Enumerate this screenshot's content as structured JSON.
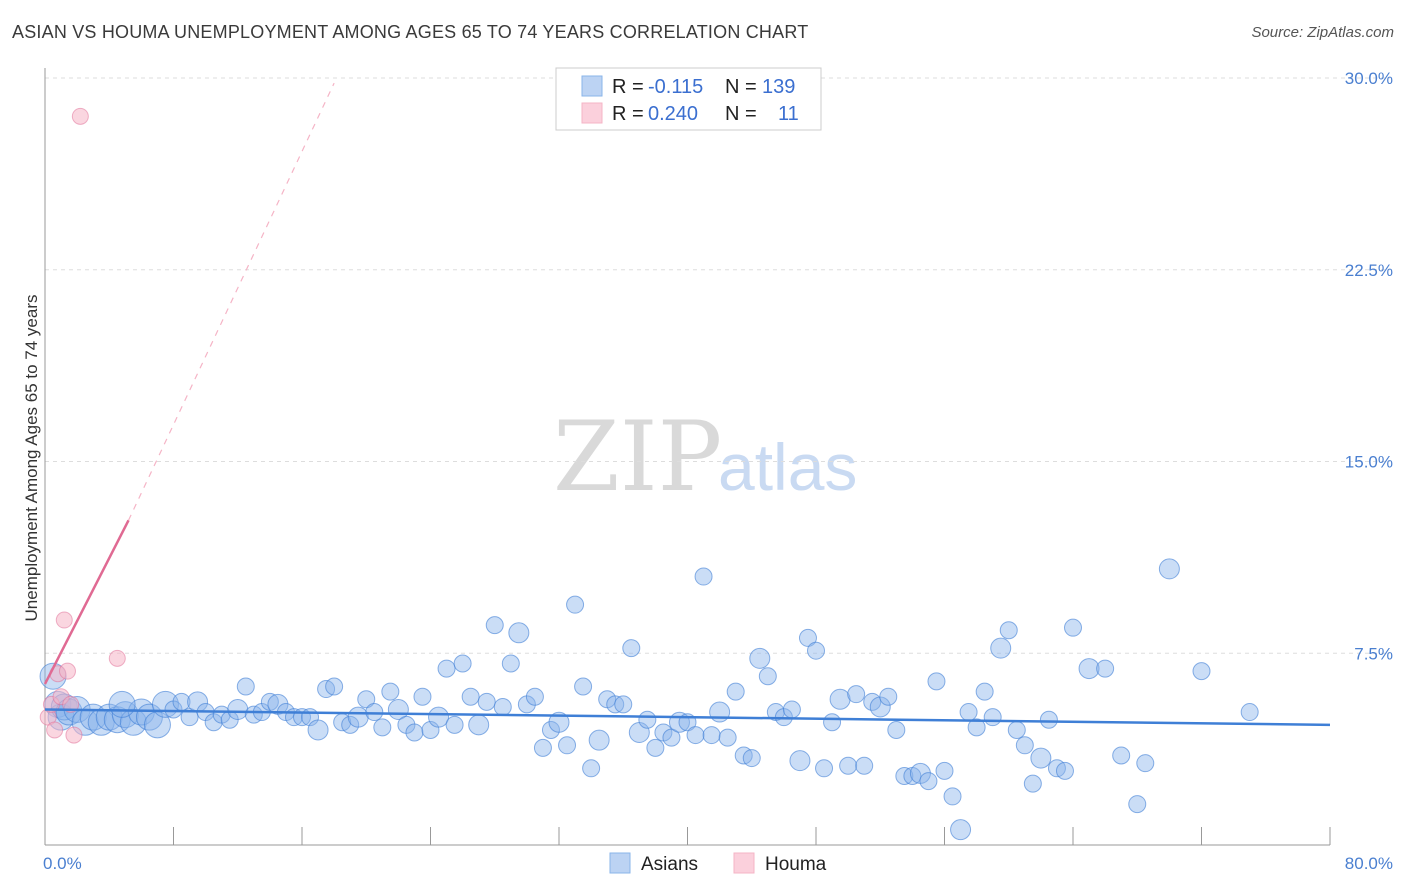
{
  "title": "ASIAN VS HOUMA UNEMPLOYMENT AMONG AGES 65 TO 74 YEARS CORRELATION CHART",
  "source": "Source: ZipAtlas.com",
  "watermark": {
    "zip": "ZIP",
    "atlas": "atlas"
  },
  "chart_data": {
    "type": "scatter",
    "ylabel": "Unemployment Among Ages 65 to 74 years",
    "xlim": [
      0,
      80
    ],
    "ylim": [
      0,
      30
    ],
    "x_tick_labels": [
      "0.0%",
      "80.0%"
    ],
    "y_ticks": [
      7.5,
      15.0,
      22.5,
      30.0
    ],
    "y_tick_labels": [
      "7.5%",
      "15.0%",
      "22.5%",
      "30.0%"
    ],
    "colors": {
      "asians": "#8ab4ea",
      "asians_line": "#3f7fd6",
      "houma": "#f5b4c6",
      "houma_line": "#e06a93"
    },
    "legend": {
      "rows": [
        {
          "r_label": "R =",
          "r_value": "-0.115",
          "n_label": "N =",
          "n_value": "139"
        },
        {
          "r_label": "R =",
          "r_value": "0.240",
          "n_label": "N =",
          "n_value": "11"
        }
      ]
    },
    "bottom_legend": [
      "Asians",
      "Houma"
    ],
    "series": [
      {
        "name": "Asians",
        "trend": {
          "x0": 0,
          "y0": 5.3,
          "x1": 80,
          "y1": 4.7
        },
        "points": [
          [
            0.5,
            6.6
          ],
          [
            0.8,
            5.5
          ],
          [
            1.0,
            5.0
          ],
          [
            1.2,
            5.4
          ],
          [
            1.5,
            5.2
          ],
          [
            2.0,
            5.3
          ],
          [
            2.5,
            4.8
          ],
          [
            3.0,
            5.0
          ],
          [
            3.5,
            4.8
          ],
          [
            4.0,
            5.0
          ],
          [
            4.5,
            4.9
          ],
          [
            5.0,
            5.1
          ],
          [
            5.5,
            4.8
          ],
          [
            6.0,
            5.2
          ],
          [
            6.5,
            5.0
          ],
          [
            7.0,
            4.7
          ],
          [
            7.5,
            5.5
          ],
          [
            8.0,
            5.3
          ],
          [
            8.5,
            5.6
          ],
          [
            9.0,
            5.0
          ],
          [
            9.5,
            5.6
          ],
          [
            10.0,
            5.2
          ],
          [
            10.5,
            4.8
          ],
          [
            11.0,
            5.1
          ],
          [
            11.5,
            4.9
          ],
          [
            12.0,
            5.3
          ],
          [
            12.5,
            6.2
          ],
          [
            13.0,
            5.1
          ],
          [
            13.5,
            5.2
          ],
          [
            14.0,
            5.6
          ],
          [
            14.5,
            5.5
          ],
          [
            15.0,
            5.2
          ],
          [
            15.5,
            5.0
          ],
          [
            16.0,
            5.0
          ],
          [
            16.5,
            5.0
          ],
          [
            17.0,
            4.5
          ],
          [
            17.5,
            6.1
          ],
          [
            18.0,
            6.2
          ],
          [
            18.5,
            4.8
          ],
          [
            19.0,
            4.7
          ],
          [
            19.5,
            5.0
          ],
          [
            20.0,
            5.7
          ],
          [
            20.5,
            5.2
          ],
          [
            21.0,
            4.6
          ],
          [
            21.5,
            6.0
          ],
          [
            22.0,
            5.3
          ],
          [
            22.5,
            4.7
          ],
          [
            23.0,
            4.4
          ],
          [
            23.5,
            5.8
          ],
          [
            24.0,
            4.5
          ],
          [
            24.5,
            5.0
          ],
          [
            25.0,
            6.9
          ],
          [
            25.5,
            4.7
          ],
          [
            26.0,
            7.1
          ],
          [
            26.5,
            5.8
          ],
          [
            27.0,
            4.7
          ],
          [
            27.5,
            5.6
          ],
          [
            28.0,
            8.6
          ],
          [
            28.5,
            5.4
          ],
          [
            29.0,
            7.1
          ],
          [
            29.5,
            8.3
          ],
          [
            30.0,
            5.5
          ],
          [
            30.5,
            5.8
          ],
          [
            31.0,
            3.8
          ],
          [
            31.5,
            4.5
          ],
          [
            32.0,
            4.8
          ],
          [
            32.5,
            3.9
          ],
          [
            33.0,
            9.4
          ],
          [
            33.5,
            6.2
          ],
          [
            34.0,
            3.0
          ],
          [
            34.5,
            4.1
          ],
          [
            35.0,
            5.7
          ],
          [
            35.5,
            5.5
          ],
          [
            36.0,
            5.5
          ],
          [
            36.5,
            7.7
          ],
          [
            37.0,
            4.4
          ],
          [
            37.5,
            4.9
          ],
          [
            38.0,
            3.8
          ],
          [
            38.5,
            4.4
          ],
          [
            39.0,
            4.2
          ],
          [
            39.5,
            4.8
          ],
          [
            40.0,
            4.8
          ],
          [
            40.5,
            4.3
          ],
          [
            41.0,
            10.5
          ],
          [
            41.5,
            4.3
          ],
          [
            42.0,
            5.2
          ],
          [
            42.5,
            4.2
          ],
          [
            43.0,
            6.0
          ],
          [
            43.5,
            3.5
          ],
          [
            44.0,
            3.4
          ],
          [
            44.5,
            7.3
          ],
          [
            45.0,
            6.6
          ],
          [
            45.5,
            5.2
          ],
          [
            46.0,
            5.0
          ],
          [
            46.5,
            5.3
          ],
          [
            47.0,
            3.3
          ],
          [
            47.5,
            8.1
          ],
          [
            48.0,
            7.6
          ],
          [
            48.5,
            3.0
          ],
          [
            49.0,
            4.8
          ],
          [
            49.5,
            5.7
          ],
          [
            50.0,
            3.1
          ],
          [
            50.5,
            5.9
          ],
          [
            51.0,
            3.1
          ],
          [
            51.5,
            5.6
          ],
          [
            52.0,
            5.4
          ],
          [
            52.5,
            5.8
          ],
          [
            53.0,
            4.5
          ],
          [
            53.5,
            2.7
          ],
          [
            54.0,
            2.7
          ],
          [
            54.5,
            2.8
          ],
          [
            55.0,
            2.5
          ],
          [
            55.5,
            6.4
          ],
          [
            56.0,
            2.9
          ],
          [
            56.5,
            1.9
          ],
          [
            57.0,
            0.6
          ],
          [
            57.5,
            5.2
          ],
          [
            58.0,
            4.6
          ],
          [
            58.5,
            6.0
          ],
          [
            59.0,
            5.0
          ],
          [
            59.5,
            7.7
          ],
          [
            60.0,
            8.4
          ],
          [
            60.5,
            4.5
          ],
          [
            61.0,
            3.9
          ],
          [
            61.5,
            2.4
          ],
          [
            62.0,
            3.4
          ],
          [
            62.5,
            4.9
          ],
          [
            63.0,
            3.0
          ],
          [
            63.5,
            2.9
          ],
          [
            64.0,
            8.5
          ],
          [
            65.0,
            6.9
          ],
          [
            66.0,
            6.9
          ],
          [
            67.0,
            3.5
          ],
          [
            68.0,
            1.6
          ],
          [
            68.5,
            3.2
          ],
          [
            70.0,
            10.8
          ],
          [
            72.0,
            6.8
          ],
          [
            75.0,
            5.2
          ],
          [
            4.8,
            5.5
          ]
        ]
      },
      {
        "name": "Houma",
        "trend": {
          "x0": 0,
          "y0": 6.3,
          "x1": 5.2,
          "y1": 12.7,
          "ext_x": 18,
          "ext_y": 29.8
        },
        "points": [
          [
            0.2,
            5.0
          ],
          [
            0.4,
            5.5
          ],
          [
            0.6,
            4.5
          ],
          [
            0.8,
            6.7
          ],
          [
            1.0,
            5.8
          ],
          [
            1.2,
            8.8
          ],
          [
            1.4,
            6.8
          ],
          [
            1.6,
            5.5
          ],
          [
            1.8,
            4.3
          ],
          [
            2.2,
            28.5
          ],
          [
            4.5,
            7.3
          ]
        ]
      }
    ]
  }
}
